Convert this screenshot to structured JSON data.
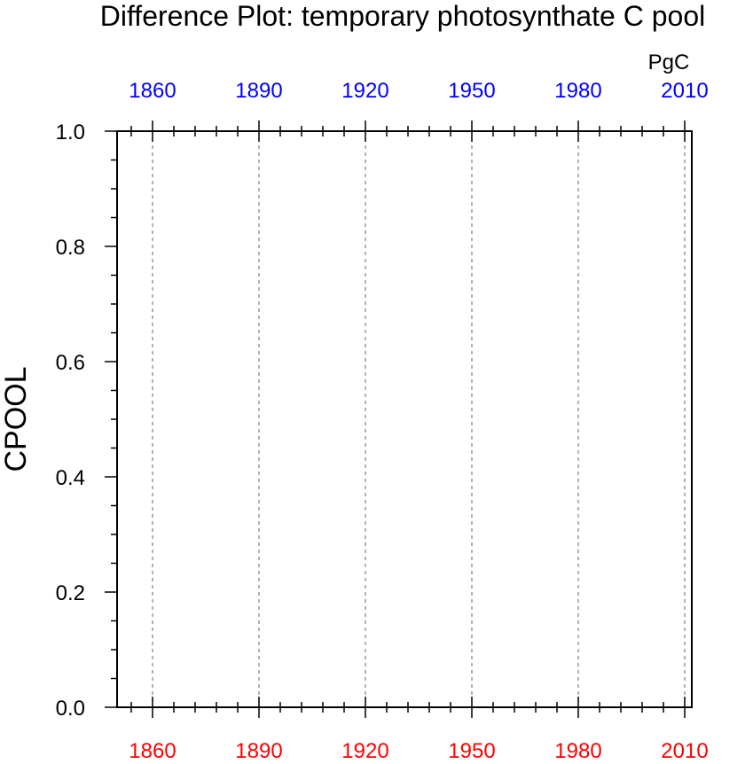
{
  "chart_data": {
    "type": "line",
    "title": "Difference Plot: temporary photosynthate C pool",
    "ylabel": "CPOOL",
    "units_label": "PgC",
    "xlim": [
      1850,
      2012
    ],
    "ylim": [
      0.0,
      1.0
    ],
    "bottom_axis": {
      "color": "#ff0000",
      "ticks": [
        1860,
        1890,
        1920,
        1950,
        1980,
        2010
      ],
      "tick_labels": [
        "1860",
        "1890",
        "1920",
        "1950",
        "1980",
        "2010"
      ]
    },
    "top_axis": {
      "color": "#0000ff",
      "ticks": [
        1860,
        1890,
        1920,
        1950,
        1980,
        2010
      ],
      "tick_labels": [
        "1860",
        "1890",
        "1920",
        "1950",
        "1980",
        "2010"
      ]
    },
    "y_ticks": [
      0.0,
      0.2,
      0.4,
      0.6,
      0.8,
      1.0
    ],
    "y_tick_labels": [
      "0.0",
      "0.2",
      "0.4",
      "0.6",
      "0.8",
      "1.0"
    ],
    "x_minor_step": 6,
    "y_minor_step": 0.05,
    "gridlines": "vertical dashed at major x ticks",
    "series": []
  }
}
